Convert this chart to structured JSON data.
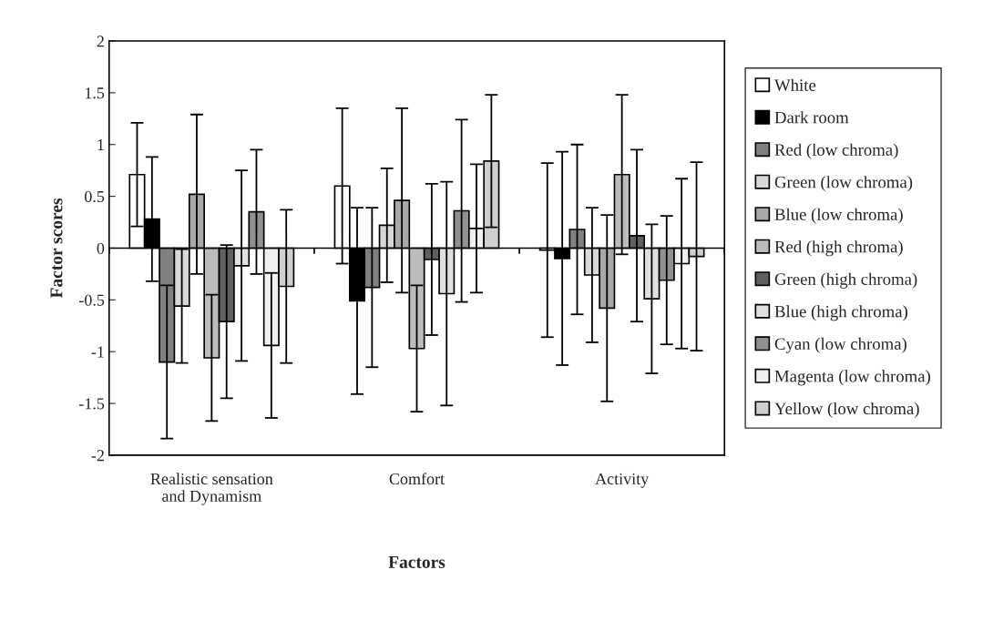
{
  "chart_data": {
    "type": "bar",
    "xlabel": "Factors",
    "ylabel": "Factor scores",
    "categories": [
      "Realistic sensation\nand Dynamism",
      "Comfort",
      "Activity"
    ],
    "series": [
      {
        "name": "White",
        "color": "#ffffff",
        "values": [
          0.71,
          0.6,
          -0.02
        ],
        "errors": [
          0.5,
          0.75,
          0.84
        ]
      },
      {
        "name": "Dark room",
        "color": "#000000",
        "values": [
          0.28,
          -0.51,
          -0.1
        ],
        "errors": [
          0.6,
          0.9,
          1.03
        ]
      },
      {
        "name": "Red (low chroma)",
        "color": "#808080",
        "values": [
          -1.1,
          -0.38,
          0.18
        ],
        "errors": [
          0.74,
          0.77,
          0.82
        ]
      },
      {
        "name": "Green (low chroma)",
        "color": "#d8d8d8",
        "values": [
          -0.56,
          0.22,
          -0.26
        ],
        "errors": [
          0.55,
          0.55,
          0.65
        ]
      },
      {
        "name": "Blue (low chroma)",
        "color": "#a8a8a8",
        "values": [
          0.52,
          0.46,
          -0.58
        ],
        "errors": [
          0.77,
          0.89,
          0.9
        ]
      },
      {
        "name": "Red (high chroma)",
        "color": "#bcbcbc",
        "values": [
          -1.06,
          -0.97,
          0.71
        ],
        "errors": [
          0.61,
          0.61,
          0.77
        ]
      },
      {
        "name": "Green (high chroma)",
        "color": "#606060",
        "values": [
          -0.71,
          -0.11,
          0.12
        ],
        "errors": [
          0.74,
          0.73,
          0.83
        ]
      },
      {
        "name": "Blue (high chroma)",
        "color": "#e0e0e0",
        "values": [
          -0.17,
          -0.44,
          -0.49
        ],
        "errors": [
          0.92,
          1.08,
          0.72
        ]
      },
      {
        "name": "Cyan (low chroma)",
        "color": "#909090",
        "values": [
          0.35,
          0.36,
          -0.31
        ],
        "errors": [
          0.6,
          0.88,
          0.62
        ]
      },
      {
        "name": "Magenta (low chroma)",
        "color": "#f0f0f0",
        "values": [
          -0.94,
          0.19,
          -0.15
        ],
        "errors": [
          0.7,
          0.62,
          0.82
        ]
      },
      {
        "name": "Yellow (low chroma)",
        "color": "#cfcfcf",
        "values": [
          -0.37,
          0.84,
          -0.08
        ],
        "errors": [
          0.74,
          0.64,
          0.91
        ]
      }
    ],
    "ylim": [
      -2,
      2
    ],
    "yticks": [
      -2,
      -1.5,
      -1,
      -0.5,
      0,
      0.5,
      1,
      1.5,
      2
    ],
    "ref_lines": [
      {
        "axis": "y",
        "value": 0,
        "color": "#000000"
      }
    ],
    "grid": false,
    "legend": "right"
  }
}
